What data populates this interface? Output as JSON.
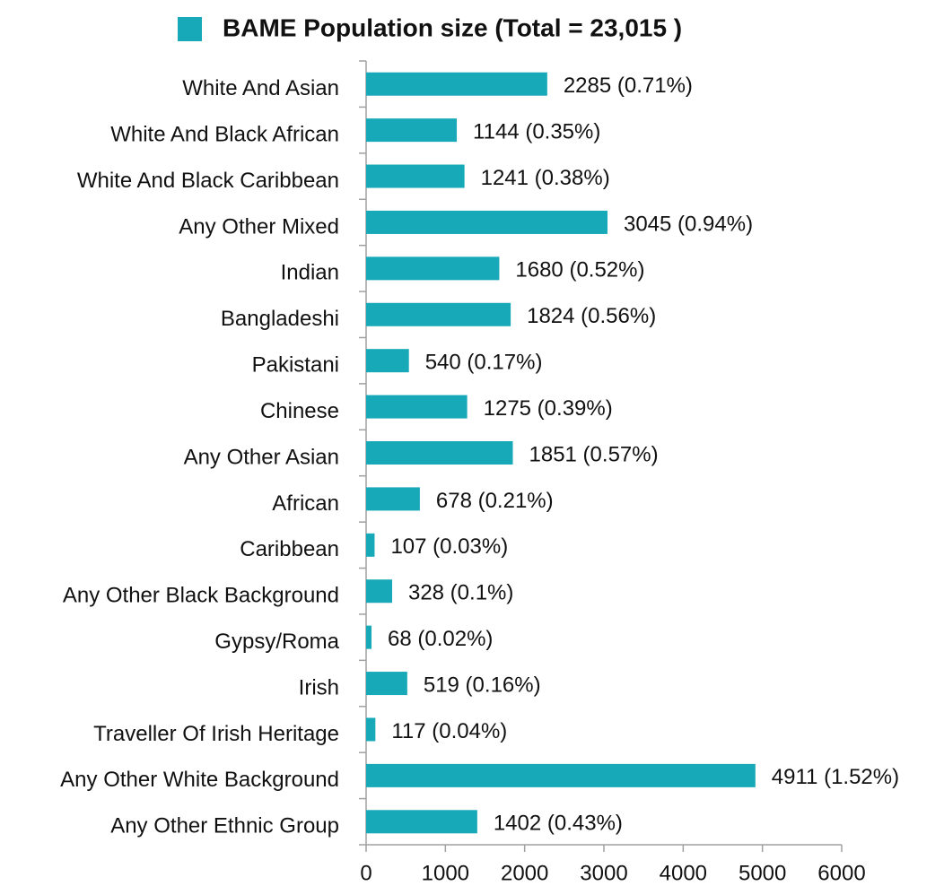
{
  "chart_data": {
    "type": "bar",
    "orientation": "horizontal",
    "categories": [
      "White And Asian",
      "White And Black African",
      "White And Black Caribbean",
      "Any Other Mixed",
      "Indian",
      "Bangladeshi",
      "Pakistani",
      "Chinese",
      "Any Other Asian",
      "African",
      "Caribbean",
      "Any Other Black Background",
      "Gypsy/Roma",
      "Irish",
      "Traveller Of Irish Heritage",
      "Any Other White Background",
      "Any Other Ethnic Group"
    ],
    "series": [
      {
        "name": "BAME Population size (Total = 23,015 )",
        "color": "#17a9b8",
        "values": [
          2285,
          1144,
          1241,
          3045,
          1680,
          1824,
          540,
          1275,
          1851,
          678,
          107,
          328,
          68,
          519,
          117,
          4911,
          1402
        ],
        "value_labels": [
          "2285 (0.71%)",
          "1144 (0.35%)",
          "1241 (0.38%)",
          "3045 (0.94%)",
          "1680 (0.52%)",
          "1824 (0.56%)",
          "540 (0.17%)",
          "1275 (0.39%)",
          "1851 (0.57%)",
          "678 (0.21%)",
          "107 (0.03%)",
          "328 (0.1%)",
          "68 (0.02%)",
          "519 (0.16%)",
          "117 (0.04%)",
          "4911 (1.52%)",
          "1402 (0.43%)"
        ]
      }
    ],
    "xlim": [
      0,
      6000
    ],
    "xticks": [
      0,
      1000,
      2000,
      3000,
      4000,
      5000,
      6000
    ],
    "legend": "top"
  }
}
